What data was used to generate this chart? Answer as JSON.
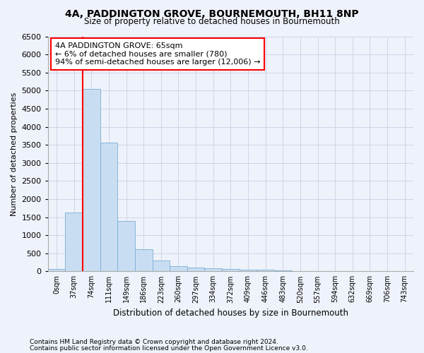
{
  "title": "4A, PADDINGTON GROVE, BOURNEMOUTH, BH11 8NP",
  "subtitle": "Size of property relative to detached houses in Bournemouth",
  "xlabel": "Distribution of detached houses by size in Bournemouth",
  "ylabel": "Number of detached properties",
  "footnote1": "Contains HM Land Registry data © Crown copyright and database right 2024.",
  "footnote2": "Contains public sector information licensed under the Open Government Licence v3.0.",
  "bin_labels": [
    "0sqm",
    "37sqm",
    "74sqm",
    "111sqm",
    "149sqm",
    "186sqm",
    "223sqm",
    "260sqm",
    "297sqm",
    "334sqm",
    "372sqm",
    "409sqm",
    "446sqm",
    "483sqm",
    "520sqm",
    "557sqm",
    "594sqm",
    "632sqm",
    "669sqm",
    "706sqm",
    "743sqm"
  ],
  "bar_values": [
    60,
    1630,
    5050,
    3560,
    1400,
    620,
    300,
    140,
    100,
    75,
    55,
    50,
    40,
    20,
    8,
    5,
    3,
    2,
    1,
    1,
    0
  ],
  "bar_color": "#c9ddf2",
  "bar_edgecolor": "#7aaed4",
  "annotation_text": "4A PADDINGTON GROVE: 65sqm\n← 6% of detached houses are smaller (780)\n94% of semi-detached houses are larger (12,006) →",
  "annotation_box_color": "white",
  "annotation_box_edgecolor": "red",
  "vline_color": "red",
  "vline_bin": 2,
  "ylim": [
    0,
    6500
  ],
  "yticks": [
    0,
    500,
    1000,
    1500,
    2000,
    2500,
    3000,
    3500,
    4000,
    4500,
    5000,
    5500,
    6000,
    6500
  ],
  "grid_color": "#cdd6e8",
  "background_color": "#eef2fa",
  "bin_width": 37,
  "font_family": "DejaVu Sans"
}
